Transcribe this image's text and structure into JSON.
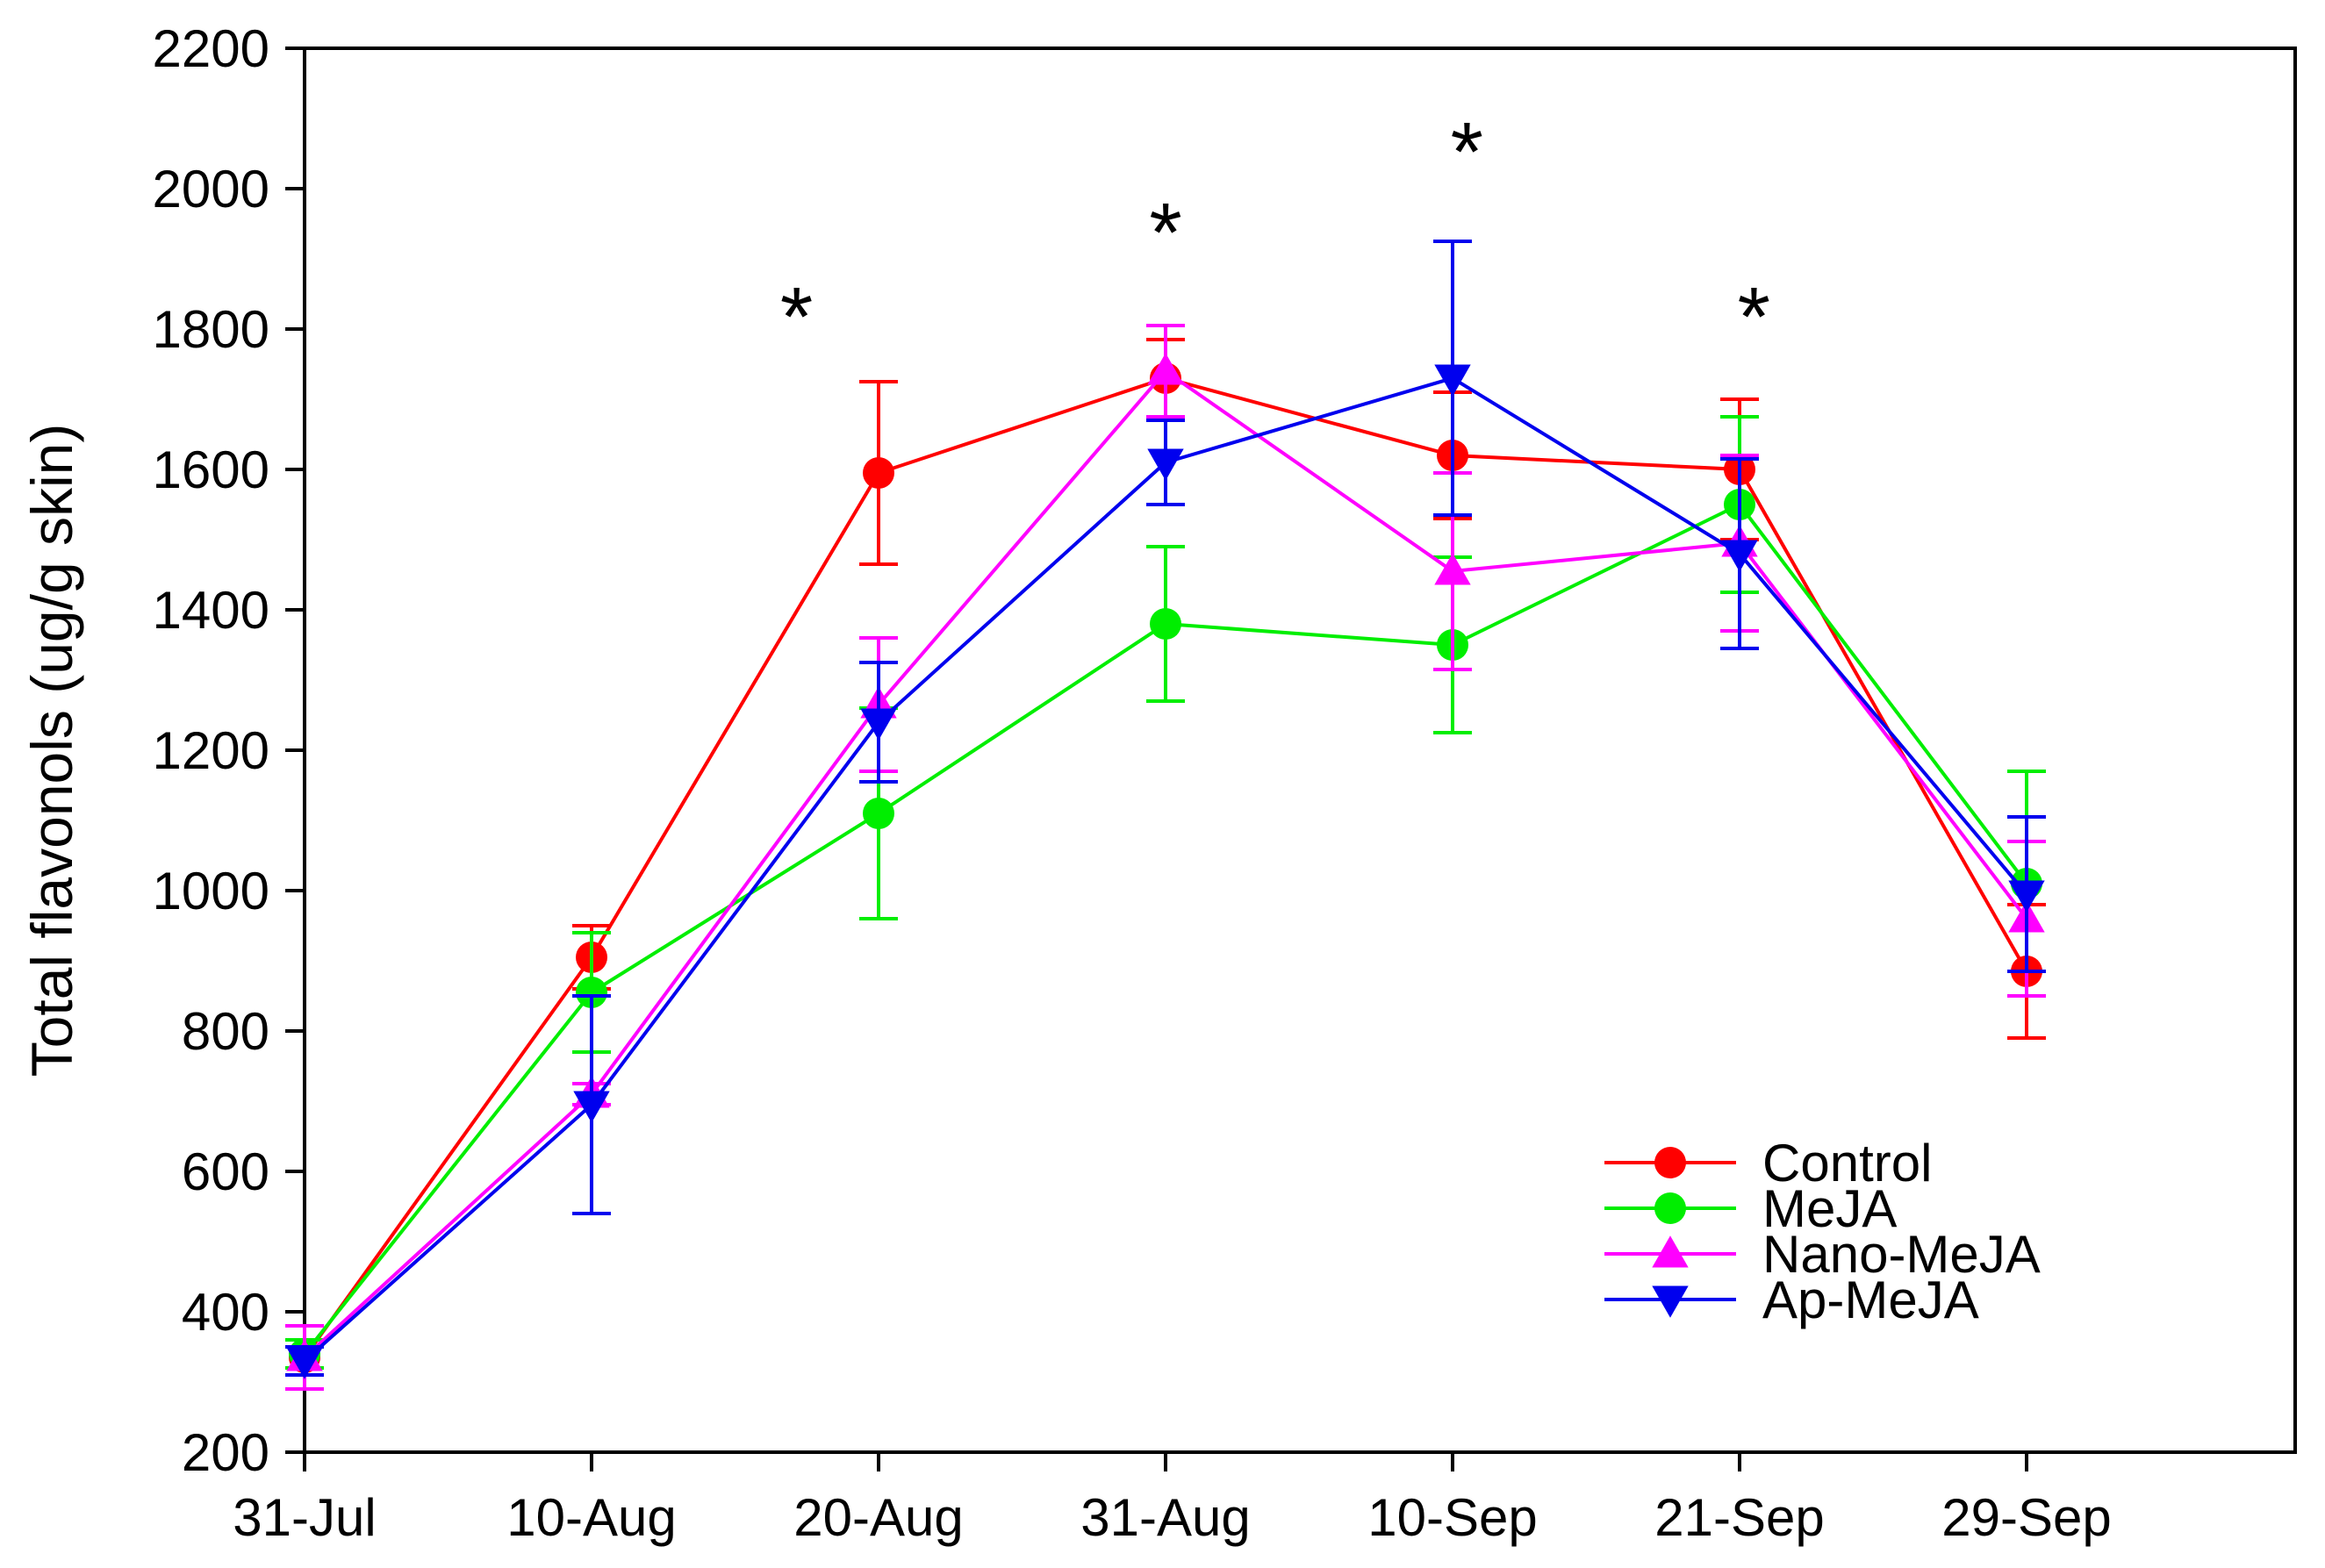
{
  "chart_data": {
    "type": "line",
    "ylabel": "Total flavonols (ug/g skin)",
    "xlabel": "",
    "categories": [
      "31-Jul",
      "10-Aug",
      "20-Aug",
      "31-Aug",
      "10-Sep",
      "21-Sep",
      "29-Sep"
    ],
    "ylim": [
      200,
      2200
    ],
    "yticks": [
      200,
      400,
      600,
      800,
      1000,
      1200,
      1400,
      1600,
      1800,
      2000,
      2200
    ],
    "grid": false,
    "legend_position": "bottom-right",
    "series": [
      {
        "name": "Control",
        "color": "#ff0000",
        "marker": "circle",
        "values": [
          335,
          905,
          1595,
          1730,
          1620,
          1600,
          885
        ],
        "error": [
          25,
          45,
          130,
          55,
          90,
          100,
          95
        ]
      },
      {
        "name": "MeJA",
        "color": "#00ee00",
        "marker": "circle",
        "values": [
          340,
          855,
          1110,
          1380,
          1350,
          1550,
          1010
        ],
        "error": [
          20,
          85,
          150,
          110,
          125,
          125,
          160
        ]
      },
      {
        "name": "Nano-MeJA",
        "color": "#ff00ff",
        "marker": "triangle-up",
        "values": [
          335,
          710,
          1265,
          1740,
          1455,
          1495,
          960
        ],
        "error": [
          45,
          15,
          95,
          65,
          140,
          125,
          110
        ]
      },
      {
        "name": "Ap-MeJA",
        "color": "#0000ee",
        "marker": "triangle-down",
        "values": [
          330,
          695,
          1240,
          1610,
          1730,
          1480,
          995
        ],
        "error": [
          20,
          155,
          85,
          60,
          195,
          135,
          110
        ]
      }
    ],
    "annotations": [
      {
        "text": "*",
        "x_between": [
          1,
          2
        ],
        "y": 1845
      },
      {
        "text": "*",
        "x_index": 3,
        "y": 1965
      },
      {
        "text": "*",
        "x_index": 4.05,
        "y": 2080
      },
      {
        "text": "*",
        "x_index": 5.05,
        "y": 1845
      }
    ]
  }
}
